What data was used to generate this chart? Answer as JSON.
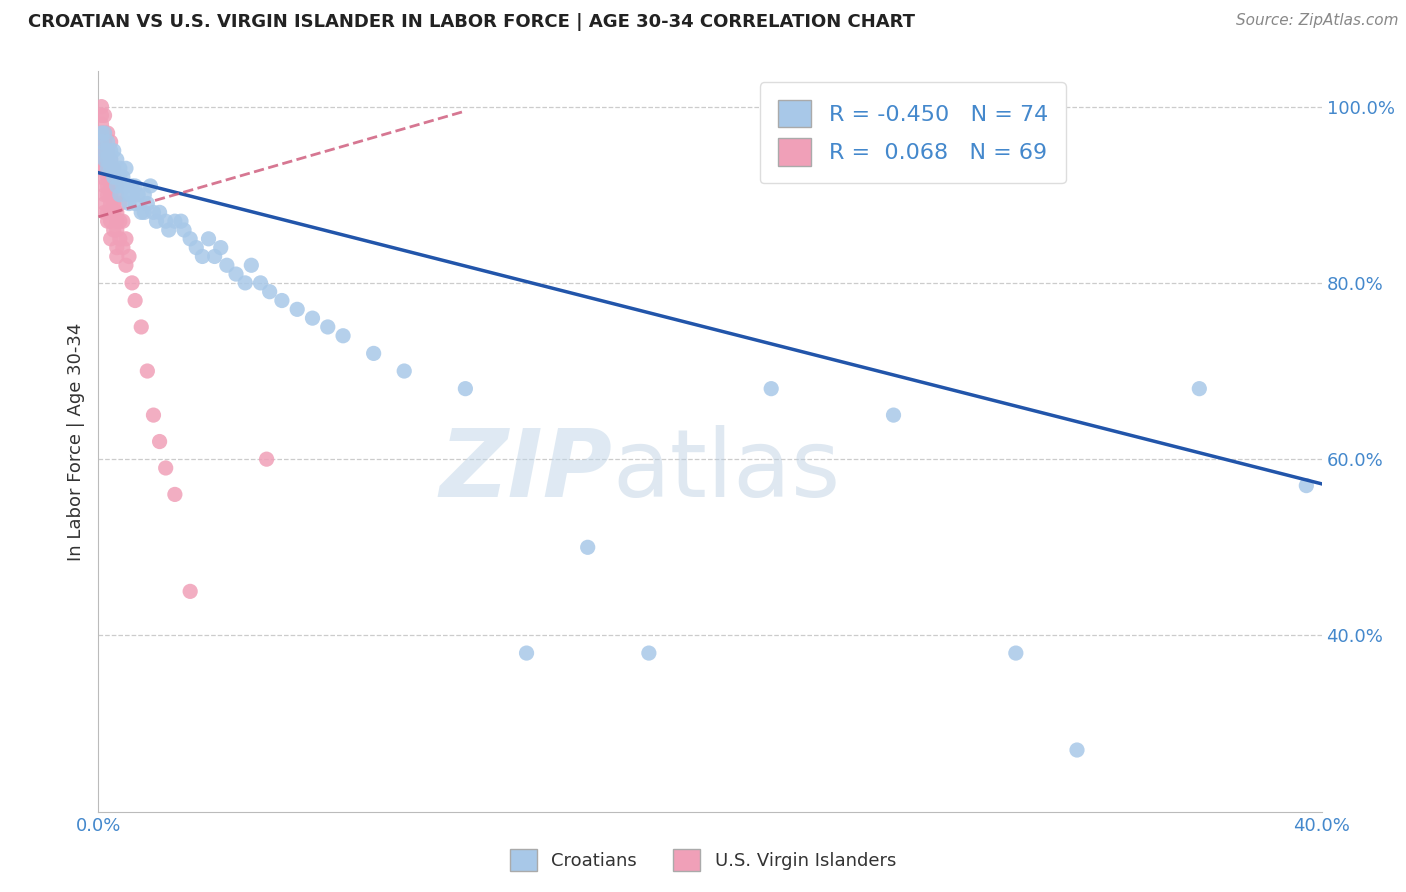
{
  "title": "CROATIAN VS U.S. VIRGIN ISLANDER IN LABOR FORCE | AGE 30-34 CORRELATION CHART",
  "source_text": "Source: ZipAtlas.com",
  "ylabel": "In Labor Force | Age 30-34",
  "xlim": [
    0.0,
    0.4
  ],
  "ylim": [
    0.2,
    1.04
  ],
  "blue_R": -0.45,
  "blue_N": 74,
  "pink_R": 0.068,
  "pink_N": 69,
  "blue_color": "#a8c8e8",
  "blue_line_color": "#2255aa",
  "pink_color": "#f0a0b8",
  "pink_line_color": "#cc5577",
  "watermark_text": "ZIPatlas",
  "blue_scatter_x": [
    0.001,
    0.001,
    0.002,
    0.002,
    0.002,
    0.003,
    0.003,
    0.003,
    0.003,
    0.004,
    0.004,
    0.004,
    0.005,
    0.005,
    0.005,
    0.006,
    0.006,
    0.006,
    0.007,
    0.007,
    0.007,
    0.008,
    0.008,
    0.009,
    0.009,
    0.01,
    0.01,
    0.011,
    0.011,
    0.012,
    0.012,
    0.013,
    0.014,
    0.015,
    0.015,
    0.016,
    0.017,
    0.018,
    0.019,
    0.02,
    0.022,
    0.023,
    0.025,
    0.027,
    0.028,
    0.03,
    0.032,
    0.034,
    0.036,
    0.038,
    0.04,
    0.042,
    0.045,
    0.048,
    0.05,
    0.053,
    0.056,
    0.06,
    0.065,
    0.07,
    0.075,
    0.08,
    0.09,
    0.1,
    0.12,
    0.14,
    0.16,
    0.18,
    0.22,
    0.26,
    0.3,
    0.32,
    0.36,
    0.395
  ],
  "blue_scatter_y": [
    0.97,
    0.96,
    0.97,
    0.95,
    0.94,
    0.96,
    0.95,
    0.94,
    0.93,
    0.95,
    0.94,
    0.93,
    0.95,
    0.93,
    0.92,
    0.94,
    0.92,
    0.91,
    0.93,
    0.92,
    0.9,
    0.92,
    0.91,
    0.93,
    0.91,
    0.9,
    0.89,
    0.91,
    0.9,
    0.91,
    0.89,
    0.9,
    0.88,
    0.9,
    0.88,
    0.89,
    0.91,
    0.88,
    0.87,
    0.88,
    0.87,
    0.86,
    0.87,
    0.87,
    0.86,
    0.85,
    0.84,
    0.83,
    0.85,
    0.83,
    0.84,
    0.82,
    0.81,
    0.8,
    0.82,
    0.8,
    0.79,
    0.78,
    0.77,
    0.76,
    0.75,
    0.74,
    0.72,
    0.7,
    0.68,
    0.38,
    0.5,
    0.38,
    0.68,
    0.65,
    0.38,
    0.27,
    0.68,
    0.57
  ],
  "pink_scatter_x": [
    0.001,
    0.001,
    0.001,
    0.001,
    0.001,
    0.001,
    0.001,
    0.001,
    0.001,
    0.002,
    0.002,
    0.002,
    0.002,
    0.002,
    0.002,
    0.002,
    0.002,
    0.002,
    0.002,
    0.003,
    0.003,
    0.003,
    0.003,
    0.003,
    0.003,
    0.003,
    0.003,
    0.003,
    0.004,
    0.004,
    0.004,
    0.004,
    0.004,
    0.004,
    0.004,
    0.004,
    0.004,
    0.004,
    0.005,
    0.005,
    0.005,
    0.005,
    0.005,
    0.005,
    0.006,
    0.006,
    0.006,
    0.006,
    0.006,
    0.006,
    0.006,
    0.007,
    0.007,
    0.007,
    0.008,
    0.008,
    0.009,
    0.009,
    0.01,
    0.011,
    0.012,
    0.014,
    0.016,
    0.018,
    0.02,
    0.022,
    0.025,
    0.03,
    0.055
  ],
  "pink_scatter_y": [
    1.0,
    0.99,
    0.98,
    0.97,
    0.96,
    0.95,
    0.94,
    0.93,
    0.92,
    0.99,
    0.97,
    0.96,
    0.95,
    0.94,
    0.93,
    0.91,
    0.9,
    0.89,
    0.88,
    0.97,
    0.95,
    0.94,
    0.93,
    0.92,
    0.91,
    0.9,
    0.88,
    0.87,
    0.96,
    0.94,
    0.93,
    0.92,
    0.91,
    0.9,
    0.89,
    0.88,
    0.87,
    0.85,
    0.93,
    0.92,
    0.91,
    0.89,
    0.88,
    0.86,
    0.91,
    0.9,
    0.88,
    0.87,
    0.86,
    0.84,
    0.83,
    0.89,
    0.87,
    0.85,
    0.87,
    0.84,
    0.85,
    0.82,
    0.83,
    0.8,
    0.78,
    0.75,
    0.7,
    0.65,
    0.62,
    0.59,
    0.56,
    0.45,
    0.6
  ],
  "blue_line_x0": 0.0,
  "blue_line_y0": 0.925,
  "blue_line_x1": 0.4,
  "blue_line_y1": 0.572,
  "pink_line_x0": 0.0,
  "pink_line_y0": 0.875,
  "pink_line_x1": 0.12,
  "pink_line_y1": 0.995
}
